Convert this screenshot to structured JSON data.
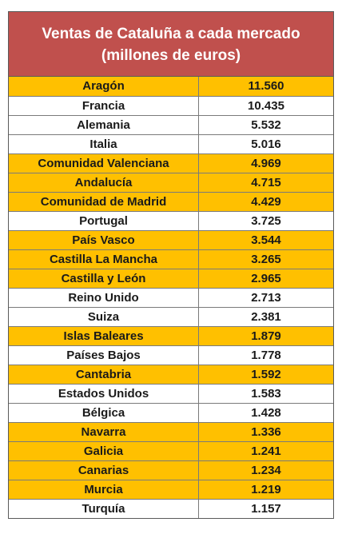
{
  "chart_data": {
    "type": "table",
    "title_line1": "Ventas de Cataluña a cada mercado",
    "title_line2": "(millones de euros)",
    "highlight_color": "#ffc000",
    "header_color": "#c0504d",
    "rows": [
      {
        "name": "Aragón",
        "value": "11.560",
        "highlight": true
      },
      {
        "name": "Francia",
        "value": "10.435",
        "highlight": false
      },
      {
        "name": "Alemania",
        "value": "5.532",
        "highlight": false
      },
      {
        "name": "Italia",
        "value": "5.016",
        "highlight": false
      },
      {
        "name": "Comunidad Valenciana",
        "value": "4.969",
        "highlight": true
      },
      {
        "name": "Andalucía",
        "value": "4.715",
        "highlight": true
      },
      {
        "name": "Comunidad de Madrid",
        "value": "4.429",
        "highlight": true
      },
      {
        "name": "Portugal",
        "value": "3.725",
        "highlight": false
      },
      {
        "name": "País Vasco",
        "value": "3.544",
        "highlight": true
      },
      {
        "name": "Castilla La Mancha",
        "value": "3.265",
        "highlight": true
      },
      {
        "name": "Castilla y León",
        "value": "2.965",
        "highlight": true
      },
      {
        "name": "Reino Unido",
        "value": "2.713",
        "highlight": false
      },
      {
        "name": "Suiza",
        "value": "2.381",
        "highlight": false
      },
      {
        "name": "Islas Baleares",
        "value": "1.879",
        "highlight": true
      },
      {
        "name": "Países Bajos",
        "value": "1.778",
        "highlight": false
      },
      {
        "name": "Cantabria",
        "value": "1.592",
        "highlight": true
      },
      {
        "name": "Estados Unidos",
        "value": "1.583",
        "highlight": false
      },
      {
        "name": "Bélgica",
        "value": "1.428",
        "highlight": false
      },
      {
        "name": "Navarra",
        "value": "1.336",
        "highlight": true
      },
      {
        "name": "Galicia",
        "value": "1.241",
        "highlight": true
      },
      {
        "name": "Canarias",
        "value": "1.234",
        "highlight": true
      },
      {
        "name": "Murcia",
        "value": "1.219",
        "highlight": true
      },
      {
        "name": "Turquía",
        "value": "1.157",
        "highlight": false
      }
    ]
  }
}
